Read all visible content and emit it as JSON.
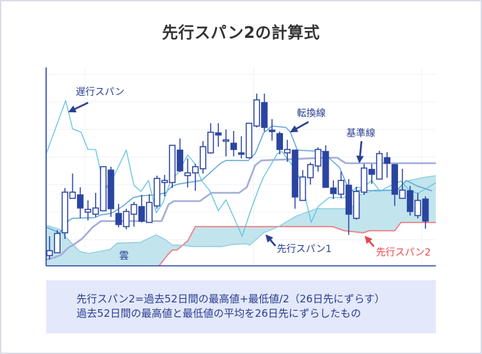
{
  "title": "先行スパン2の計算式",
  "info_box": {
    "lines": [
      "先行スパン2=過去52日間の最高値+最低値/2（26日先にずらす）",
      "過去52日間の最高値と最低値の平均を26日先にずらしたもの"
    ]
  },
  "colors": {
    "title": "#333333",
    "candle": "#2a44a0",
    "axis": "#2a44a0",
    "grid": "#eef0f6",
    "chikou": "#5ec3df",
    "tenkan": "#5aa4d8",
    "kijun": "#a3aed8",
    "span1": "#8ccde0",
    "span2": "#ef7f84",
    "cloud": "#bfe3ec",
    "label": "#2b3f93",
    "label_red": "#e8474f",
    "box_bg": "#e3e8fb",
    "box_text": "#2a3d8f"
  },
  "chart_data": {
    "type": "candlestick",
    "title": "先行スパン2の計算式",
    "xlabel": "",
    "ylabel": "",
    "xlim": [
      -0.45,
      50.36
    ],
    "ylim": [
      14,
      302
    ],
    "grid": {
      "y": [
        52,
        92,
        132,
        172,
        212,
        252,
        292
      ],
      "x": [
        4.6,
        26.6,
        48.5
      ]
    },
    "candles_format": [
      "open",
      "high",
      "low",
      "close"
    ],
    "candles": [
      [
        29,
        57,
        23,
        36
      ],
      [
        33,
        66,
        33,
        61
      ],
      [
        62,
        127,
        53,
        121
      ],
      [
        112,
        148,
        112,
        121
      ],
      [
        117,
        128,
        83,
        98
      ],
      [
        92,
        109,
        80,
        96
      ],
      [
        89,
        120,
        85,
        98
      ],
      [
        94,
        158,
        94,
        158
      ],
      [
        153,
        158,
        85,
        97
      ],
      [
        90,
        104,
        70,
        74
      ],
      [
        71,
        97,
        67,
        93
      ],
      [
        89,
        107,
        71,
        103
      ],
      [
        100,
        117,
        77,
        79
      ],
      [
        77,
        118,
        77,
        106
      ],
      [
        101,
        145,
        97,
        141
      ],
      [
        135,
        146,
        115,
        138
      ],
      [
        135,
        189,
        127,
        189
      ],
      [
        182,
        199,
        150,
        152
      ],
      [
        145,
        170,
        128,
        149
      ],
      [
        149,
        162,
        123,
        158
      ],
      [
        155,
        195,
        148,
        187
      ],
      [
        178,
        221,
        177,
        208
      ],
      [
        207,
        221,
        187,
        204
      ],
      [
        195,
        212,
        173,
        197
      ],
      [
        192,
        210,
        173,
        183
      ],
      [
        178,
        202,
        170,
        176
      ],
      [
        171,
        221,
        170,
        221
      ],
      [
        217,
        264,
        215,
        255
      ],
      [
        251,
        264,
        209,
        215
      ],
      [
        211,
        227,
        196,
        209
      ],
      [
        206,
        209,
        176,
        183
      ],
      [
        178,
        197,
        165,
        183
      ],
      [
        182,
        182,
        97,
        114
      ],
      [
        109,
        153,
        109,
        143
      ],
      [
        142,
        164,
        132,
        161
      ],
      [
        159,
        186,
        151,
        183
      ],
      [
        180,
        189,
        128,
        128
      ],
      [
        127,
        138,
        111,
        119
      ],
      [
        118,
        151,
        112,
        138
      ],
      [
        131,
        140,
        59,
        89
      ],
      [
        83,
        129,
        81,
        122
      ],
      [
        121,
        162,
        117,
        156
      ],
      [
        154,
        162,
        133,
        147
      ],
      [
        140,
        181,
        140,
        177
      ],
      [
        171,
        179,
        142,
        163
      ],
      [
        161,
        162,
        101,
        118
      ],
      [
        112,
        155,
        112,
        124
      ],
      [
        123,
        130,
        87,
        93
      ],
      [
        87,
        120,
        83,
        109
      ],
      [
        111,
        115,
        68,
        79
      ]
    ],
    "series": [
      {
        "key": "span2",
        "name": "先行スパン2",
        "points": [
          [
            13.7,
            0
          ],
          [
            14.2,
            13
          ],
          [
            15.4,
            30
          ],
          [
            16.0,
            37
          ],
          [
            16.6,
            37
          ],
          [
            18.0,
            50
          ],
          [
            19.0,
            71
          ],
          [
            36.9,
            71
          ],
          [
            38.4,
            65
          ],
          [
            40.9,
            62
          ],
          [
            41.7,
            65
          ],
          [
            45.0,
            65
          ],
          [
            45.8,
            77
          ],
          [
            50.4,
            77
          ]
        ]
      },
      {
        "key": "span1",
        "name": "先行スパン1",
        "points": [
          [
            -0.4,
            73
          ],
          [
            1.3,
            67
          ],
          [
            2.2,
            55
          ],
          [
            3.9,
            35
          ],
          [
            5.1,
            32
          ],
          [
            7.9,
            38
          ],
          [
            8.8,
            47
          ],
          [
            11.8,
            48
          ],
          [
            13.9,
            59
          ],
          [
            15.1,
            52
          ],
          [
            16.0,
            44
          ],
          [
            17.1,
            44
          ],
          [
            18.7,
            42
          ],
          [
            22.5,
            42
          ],
          [
            23.8,
            45
          ],
          [
            25.6,
            46
          ],
          [
            26.1,
            44
          ],
          [
            27.9,
            62
          ],
          [
            29.7,
            70
          ],
          [
            32.1,
            86
          ],
          [
            34.8,
            97
          ],
          [
            38.6,
            97
          ],
          [
            39.5,
            100
          ],
          [
            40.5,
            117
          ],
          [
            42.3,
            124
          ],
          [
            45.3,
            124
          ],
          [
            46.5,
            137
          ],
          [
            48.6,
            142
          ],
          [
            50.4,
            145
          ]
        ]
      },
      {
        "key": "kijun",
        "name": "基準線",
        "points": [
          [
            -0.4,
            23
          ],
          [
            0.6,
            26
          ],
          [
            1.5,
            30
          ],
          [
            2.4,
            40
          ],
          [
            3.3,
            46
          ],
          [
            4.2,
            53
          ],
          [
            5.6,
            70
          ],
          [
            6.7,
            79
          ],
          [
            14.6,
            79
          ],
          [
            15.5,
            103
          ],
          [
            16.2,
            108
          ],
          [
            19.6,
            108
          ],
          [
            21.1,
            120
          ],
          [
            24.7,
            120
          ],
          [
            25.7,
            128
          ],
          [
            26.8,
            160
          ],
          [
            27.6,
            167
          ],
          [
            36.0,
            171
          ],
          [
            37.5,
            171
          ],
          [
            38.6,
            163
          ],
          [
            50.4,
            163
          ]
        ]
      },
      {
        "key": "tenkan",
        "name": "転換線",
        "points": [
          [
            -0.4,
            70
          ],
          [
            1.3,
            62
          ],
          [
            2.5,
            80
          ],
          [
            3.0,
            83
          ],
          [
            5.9,
            84
          ],
          [
            6.7,
            88
          ],
          [
            7.9,
            90
          ],
          [
            8.5,
            93
          ],
          [
            9.7,
            102
          ],
          [
            10.9,
            113
          ],
          [
            12.1,
            116
          ],
          [
            13.9,
            117
          ],
          [
            15.1,
            120
          ],
          [
            16.0,
            130
          ],
          [
            16.9,
            133
          ],
          [
            19.8,
            138
          ],
          [
            22.3,
            163
          ],
          [
            23.0,
            167
          ],
          [
            25.9,
            167
          ],
          [
            26.8,
            177
          ],
          [
            27.9,
            207
          ],
          [
            29.0,
            217
          ],
          [
            30.8,
            215
          ],
          [
            31.4,
            208
          ],
          [
            32.3,
            182
          ],
          [
            35.7,
            180
          ],
          [
            36.4,
            171
          ],
          [
            37.8,
            157
          ],
          [
            38.7,
            133
          ],
          [
            39.6,
            122
          ],
          [
            40.6,
            124
          ],
          [
            42.5,
            123
          ],
          [
            45.3,
            124
          ],
          [
            46.5,
            138
          ],
          [
            47.9,
            130
          ],
          [
            49.8,
            123
          ]
        ]
      },
      {
        "key": "chikou",
        "name": "遅行スパン",
        "points": [
          [
            -0.4,
            178
          ],
          [
            2.1,
            254
          ],
          [
            3.0,
            213
          ],
          [
            4.1,
            208
          ],
          [
            5.0,
            183
          ],
          [
            6.0,
            183
          ],
          [
            6.6,
            154
          ],
          [
            7.5,
            128
          ],
          [
            8.5,
            147
          ],
          [
            10.0,
            182
          ],
          [
            11.0,
            131
          ],
          [
            11.9,
            122
          ],
          [
            12.9,
            138
          ],
          [
            13.9,
            91
          ],
          [
            14.8,
            106
          ],
          [
            15.8,
            138
          ],
          [
            16.7,
            148
          ],
          [
            18.0,
            175
          ],
          [
            18.9,
            163
          ],
          [
            19.8,
            138
          ],
          [
            20.9,
            123
          ],
          [
            22.0,
            94
          ],
          [
            23.0,
            110
          ],
          [
            25.1,
            57
          ],
          [
            26.3,
            97
          ],
          [
            27.4,
            130
          ],
          [
            27.9,
            143
          ],
          [
            29.7,
            177
          ],
          [
            30.3,
            180
          ],
          [
            32.1,
            153
          ],
          [
            33.0,
            130
          ],
          [
            34.1,
            77
          ],
          [
            35.0,
            100
          ],
          [
            36.4,
            113
          ],
          [
            38.4,
            113
          ],
          [
            40.0,
            128
          ],
          [
            40.8,
            127
          ],
          [
            42.0,
            138
          ],
          [
            43.1,
            122
          ],
          [
            43.8,
            127
          ],
          [
            45.8,
            137
          ],
          [
            46.8,
            125
          ],
          [
            48.0,
            119
          ],
          [
            50.4,
            135
          ]
        ]
      }
    ],
    "cloud": {
      "name": "雲",
      "between": [
        "span1",
        "span2"
      ]
    },
    "annotations": [
      {
        "text": "遅行スパン",
        "target": "chikou"
      },
      {
        "text": "転換線",
        "target": "tenkan"
      },
      {
        "text": "基準線",
        "target": "kijun"
      },
      {
        "text": "先行スパン1",
        "target": "span1"
      },
      {
        "text": "先行スパン2",
        "target": "span2"
      },
      {
        "text": "雲",
        "target": "cloud"
      }
    ]
  }
}
